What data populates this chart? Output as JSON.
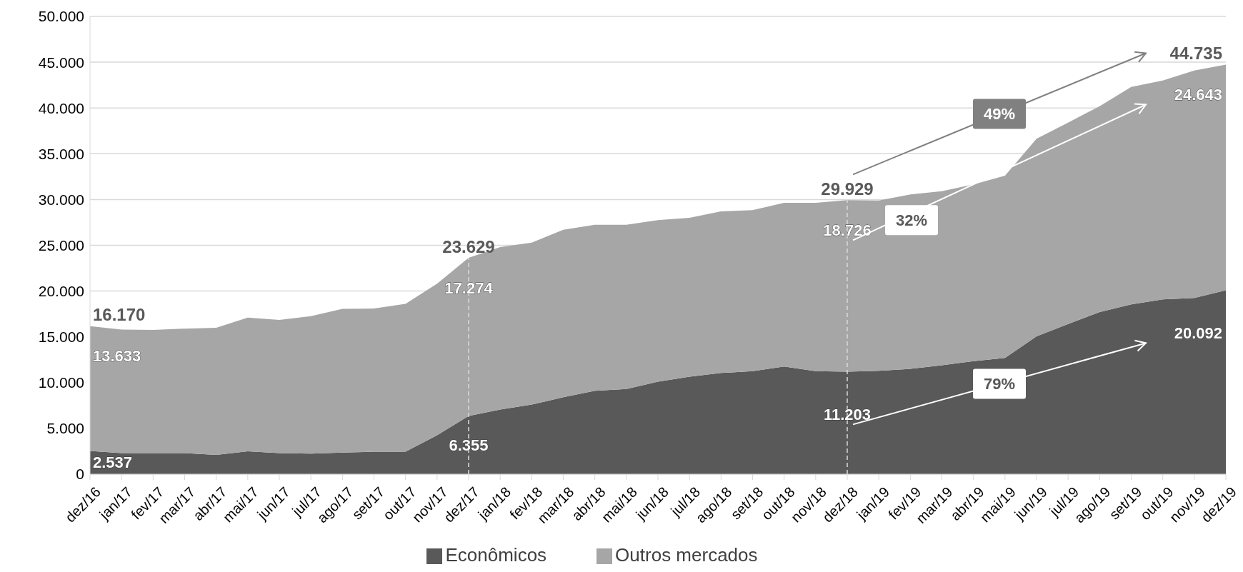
{
  "chart_data": {
    "type": "area",
    "stacked": true,
    "categories": [
      "dez/16",
      "jan/17",
      "fev/17",
      "mar/17",
      "abr/17",
      "mai/17",
      "jun/17",
      "jul/17",
      "ago/17",
      "set/17",
      "out/17",
      "nov/17",
      "dez/17",
      "jan/18",
      "fev/18",
      "mar/18",
      "abr/18",
      "mai/18",
      "jun/18",
      "jul/18",
      "ago/18",
      "set/18",
      "out/18",
      "nov/18",
      "dez/18",
      "jan/19",
      "fev/19",
      "mar/19",
      "abr/19",
      "mai/19",
      "jun/19",
      "jul/19",
      "ago/19",
      "set/19",
      "out/19",
      "nov/19",
      "dez/19"
    ],
    "series": [
      {
        "name": "Econômicos",
        "color": "#595959",
        "values": [
          2537,
          2300,
          2300,
          2300,
          2100,
          2500,
          2300,
          2250,
          2350,
          2450,
          2450,
          4250,
          6355,
          7050,
          7600,
          8400,
          9100,
          9300,
          10100,
          10650,
          11050,
          11250,
          11750,
          11250,
          11203,
          11300,
          11500,
          11900,
          12350,
          12700,
          15050,
          16400,
          17700,
          18550,
          19100,
          19250,
          20092
        ],
        "value_labels": [
          "2.537",
          null,
          null,
          null,
          null,
          null,
          null,
          null,
          null,
          null,
          null,
          null,
          "6.355",
          null,
          null,
          null,
          null,
          null,
          null,
          null,
          null,
          null,
          null,
          null,
          "11.203",
          null,
          null,
          null,
          null,
          null,
          null,
          null,
          null,
          null,
          null,
          null,
          "20.092"
        ]
      },
      {
        "name": "Outros mercados",
        "color": "#a6a6a6",
        "values": [
          13633,
          13500,
          13450,
          13600,
          13900,
          14600,
          14550,
          15000,
          15700,
          15650,
          16150,
          16550,
          17274,
          17750,
          17700,
          18300,
          18150,
          17950,
          17650,
          17350,
          17650,
          17600,
          17900,
          18400,
          18726,
          18600,
          19050,
          19000,
          19300,
          19900,
          21600,
          22000,
          22500,
          23750,
          23900,
          24850,
          24643
        ],
        "value_labels": [
          "13.633",
          null,
          null,
          null,
          null,
          null,
          null,
          null,
          null,
          null,
          null,
          null,
          "17.274",
          null,
          null,
          null,
          null,
          null,
          null,
          null,
          null,
          null,
          null,
          null,
          "18.726",
          null,
          null,
          null,
          null,
          null,
          null,
          null,
          null,
          null,
          null,
          null,
          "24.643"
        ]
      }
    ],
    "totals": [
      "16.170",
      null,
      null,
      null,
      null,
      null,
      null,
      null,
      null,
      null,
      null,
      null,
      "23.629",
      null,
      null,
      null,
      null,
      null,
      null,
      null,
      null,
      null,
      null,
      null,
      "29.929",
      null,
      null,
      null,
      null,
      null,
      null,
      null,
      null,
      null,
      null,
      null,
      "44.735"
    ],
    "ylim": [
      0,
      50000
    ],
    "yticks": [
      0,
      {
        "value": 5000,
        "label": "5.000"
      },
      {
        "value": 10000,
        "label": "10.000"
      },
      {
        "value": 15000,
        "label": "15.000"
      },
      {
        "value": 20000,
        "label": "20.000"
      },
      {
        "value": 25000,
        "label": "25.000"
      },
      {
        "value": 30000,
        "label": "30.000"
      },
      {
        "value": 35000,
        "label": "35.000"
      },
      {
        "value": 40000,
        "label": "40.000"
      },
      {
        "value": 45000,
        "label": "45.000"
      },
      {
        "value": 50000,
        "label": "50.000"
      }
    ],
    "grid": "y",
    "legend": "bottom",
    "ref_lines": [
      {
        "axis": "x",
        "value": "dez/17",
        "color": "#d9d9d9",
        "line_style": "dashed"
      },
      {
        "axis": "x",
        "value": "dez/18",
        "color": "#d9d9d9",
        "line_style": "dashed"
      }
    ],
    "annotations": [
      "49%",
      "32%",
      "79%"
    ]
  }
}
